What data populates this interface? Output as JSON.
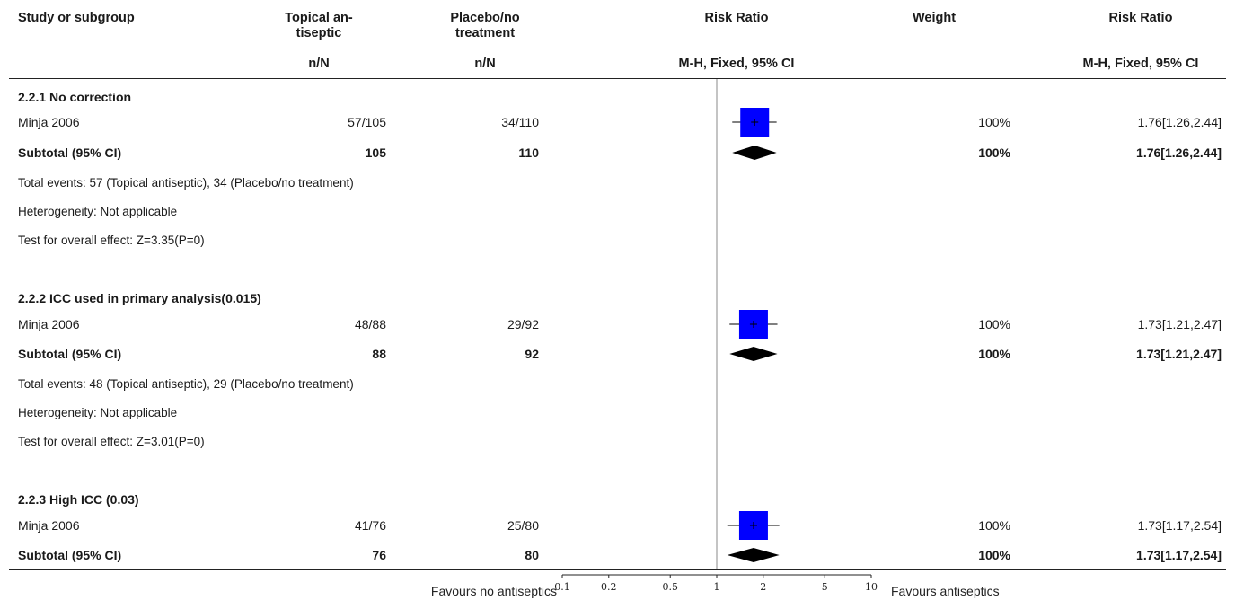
{
  "header": {
    "study": "Study or subgroup",
    "exp": "Topical an-\ntiseptic",
    "ctrl": "Placebo/no\ntreatment",
    "rr_plot": "Risk Ratio",
    "weight": "Weight",
    "rr_text": "Risk Ratio",
    "exp_sub": "n/N",
    "ctrl_sub": "n/N",
    "rr_plot_sub": "M-H, Fixed, 95% CI",
    "rr_text_sub": "M-H, Fixed, 95% CI"
  },
  "groups": [
    {
      "title": "2.2.1 No correction",
      "study": {
        "name": "Minja 2006",
        "exp": "57/105",
        "ctrl": "34/110",
        "weight": "100%",
        "rr": "1.76[1.26,2.44]"
      },
      "subtotal": {
        "label": "Subtotal (95% CI)",
        "exp": "105",
        "ctrl": "110",
        "weight": "100%",
        "rr": "1.76[1.26,2.44]"
      },
      "events": "Total events: 57 (Topical antiseptic), 34 (Placebo/no treatment)",
      "heterogeneity": "Heterogeneity: Not applicable",
      "test": "Test for overall effect: Z=3.35(P=0)"
    },
    {
      "title": "2.2.2 ICC used in primary analysis(0.015)",
      "study": {
        "name": "Minja 2006",
        "exp": "48/88",
        "ctrl": "29/92",
        "weight": "100%",
        "rr": "1.73[1.21,2.47]"
      },
      "subtotal": {
        "label": "Subtotal (95% CI)",
        "exp": "88",
        "ctrl": "92",
        "weight": "100%",
        "rr": "1.73[1.21,2.47]"
      },
      "events": "Total events: 48 (Topical antiseptic), 29 (Placebo/no treatment)",
      "heterogeneity": "Heterogeneity: Not applicable",
      "test": "Test for overall effect: Z=3.01(P=0)"
    },
    {
      "title": "2.2.3 High ICC (0.03)",
      "study": {
        "name": "Minja 2006",
        "exp": "41/76",
        "ctrl": "25/80",
        "weight": "100%",
        "rr": "1.73[1.17,2.54]"
      },
      "subtotal": {
        "label": "Subtotal (95% CI)",
        "exp": "76",
        "ctrl": "80",
        "weight": "100%",
        "rr": "1.73[1.17,2.54]"
      }
    }
  ],
  "axis": {
    "favours_left": "Favours no antiseptics",
    "favours_right": "Favours antiseptics",
    "ticks": [
      "0.1",
      "0.2",
      "0.5",
      "1",
      "2",
      "5",
      "10"
    ]
  },
  "colors": {
    "square": "#0000ff",
    "diamond": "#000000",
    "line": "#000000"
  },
  "chart_data": {
    "type": "forest",
    "scale": "log",
    "xlim": [
      0.1,
      10
    ],
    "reference": 1,
    "studies": [
      {
        "group": "2.2.1 No correction",
        "name": "Minja 2006",
        "rr": 1.76,
        "lo": 1.26,
        "hi": 2.44,
        "kind": "study"
      },
      {
        "group": "2.2.1 No correction",
        "name": "Subtotal (95% CI)",
        "rr": 1.76,
        "lo": 1.26,
        "hi": 2.44,
        "kind": "subtotal"
      },
      {
        "group": "2.2.2 ICC used in primary analysis(0.015)",
        "name": "Minja 2006",
        "rr": 1.73,
        "lo": 1.21,
        "hi": 2.47,
        "kind": "study"
      },
      {
        "group": "2.2.2 ICC used in primary analysis(0.015)",
        "name": "Subtotal (95% CI)",
        "rr": 1.73,
        "lo": 1.21,
        "hi": 2.47,
        "kind": "subtotal"
      },
      {
        "group": "2.2.3 High ICC (0.03)",
        "name": "Minja 2006",
        "rr": 1.73,
        "lo": 1.17,
        "hi": 2.54,
        "kind": "study"
      },
      {
        "group": "2.2.3 High ICC (0.03)",
        "name": "Subtotal (95% CI)",
        "rr": 1.73,
        "lo": 1.17,
        "hi": 2.54,
        "kind": "subtotal"
      }
    ]
  }
}
